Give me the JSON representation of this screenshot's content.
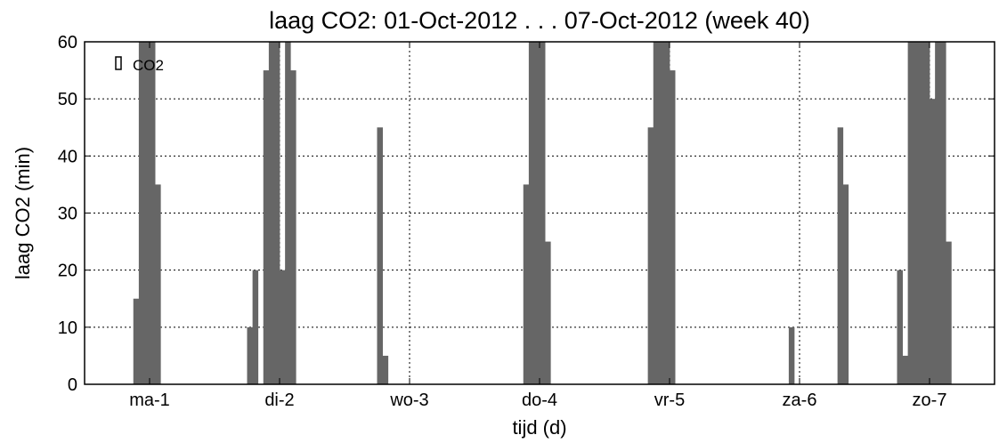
{
  "chart_data": {
    "type": "bar",
    "title": "laag CO2: 01-Oct-2012 . . . 07-Oct-2012 (week 40)",
    "xlabel": "tijd (d)",
    "ylabel": "laag CO2 (min)",
    "xlim": [
      0.5,
      7.5
    ],
    "ylim": [
      0,
      60
    ],
    "yticks": [
      0,
      10,
      20,
      30,
      40,
      50,
      60
    ],
    "categories": [
      "ma-1",
      "di-2",
      "wo-3",
      "do-4",
      "vr-5",
      "za-6",
      "zo-7"
    ],
    "category_positions": [
      1,
      2,
      3,
      4,
      5,
      6,
      7
    ],
    "grid": true,
    "legend": {
      "placement": "top-left",
      "entries": [
        "CO2"
      ]
    },
    "bar_width_days": 0.04167,
    "series": [
      {
        "name": "CO2",
        "color": "#666666",
        "x": [
          0.875,
          0.917,
          0.958,
          1.0,
          1.042,
          1.75,
          1.792,
          1.875,
          1.917,
          1.958,
          2.0,
          2.042,
          2.083,
          2.75,
          2.792,
          3.875,
          3.917,
          3.958,
          4.0,
          4.042,
          4.833,
          4.875,
          4.917,
          4.958,
          5.0,
          5.917,
          6.292,
          6.333,
          6.75,
          6.792,
          6.833,
          6.875,
          6.917,
          6.958,
          7.0,
          7.042,
          7.083,
          7.125
        ],
        "values": [
          15,
          60,
          60,
          60,
          35,
          10,
          20,
          55,
          60,
          60,
          20,
          60,
          55,
          45,
          5,
          35,
          60,
          60,
          60,
          25,
          45,
          60,
          60,
          60,
          55,
          10,
          45,
          35,
          20,
          5,
          60,
          60,
          60,
          60,
          50,
          60,
          60,
          25
        ]
      }
    ]
  }
}
